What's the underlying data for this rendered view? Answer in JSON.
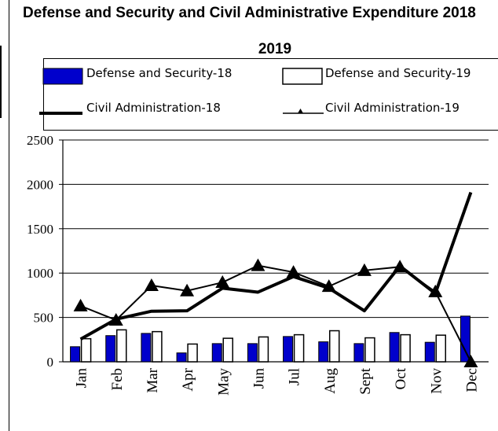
{
  "chart_data": {
    "type": "bar",
    "title": "Defense and Security and Civil Administrative Expenditure 2018",
    "title_line2": "2019",
    "categories": [
      "Jan",
      "Feb",
      "Mar",
      "Apr",
      "May",
      "Jun",
      "Jul",
      "Aug",
      "Sept",
      "Oct",
      "Nov",
      "Dec"
    ],
    "series": [
      {
        "name": "Defense and Security-18",
        "kind": "bar",
        "color": "#0000cc",
        "values": [
          170,
          295,
          320,
          100,
          205,
          205,
          285,
          225,
          205,
          330,
          220,
          515
        ]
      },
      {
        "name": "Defense and Security-19",
        "kind": "bar",
        "color": "#ffffff",
        "values": [
          260,
          360,
          340,
          200,
          265,
          280,
          305,
          350,
          270,
          305,
          300,
          null
        ]
      },
      {
        "name": "Civil Administration-18",
        "kind": "line",
        "color": "#000000",
        "values": [
          255,
          480,
          570,
          575,
          830,
          785,
          960,
          830,
          575,
          1080,
          770,
          1910
        ]
      },
      {
        "name": "Civil Administration-19",
        "kind": "line-triangle",
        "color": "#000000",
        "values": [
          630,
          470,
          860,
          800,
          895,
          1085,
          1010,
          850,
          1030,
          1070,
          790,
          0
        ]
      }
    ],
    "ylim": [
      0,
      2500
    ],
    "yticks": [
      "0",
      "500",
      "1000",
      "1500",
      "2000",
      "2500"
    ],
    "grid": true,
    "legend_placement": "top"
  }
}
